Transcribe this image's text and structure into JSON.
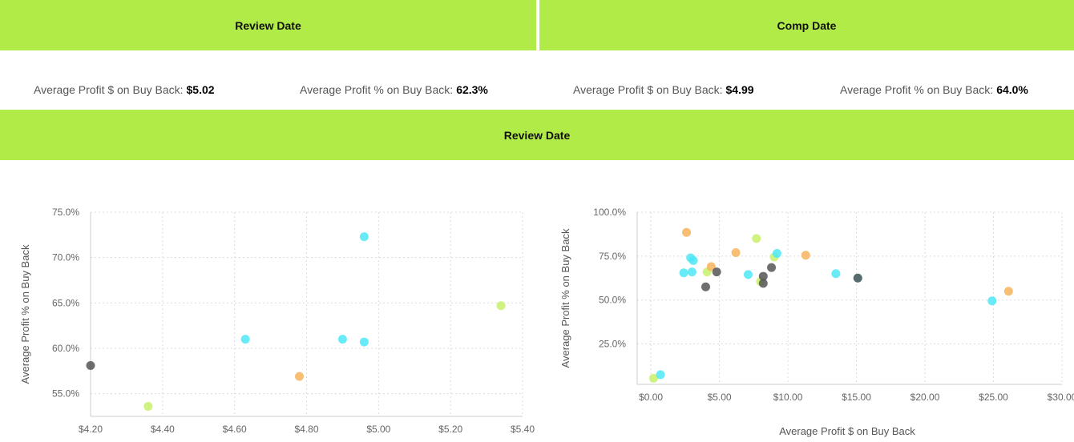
{
  "header": {
    "review_title": "Review Date",
    "comp_title": "Comp Date",
    "chart_section_title": "Review Date"
  },
  "metrics": {
    "review_profit_dollar_label": "Average Profit $ on Buy Back:",
    "review_profit_dollar_value": "$5.02",
    "review_profit_pct_label": "Average Profit % on Buy Back:",
    "review_profit_pct_value": "62.3%",
    "comp_profit_dollar_label": "Average Profit $ on Buy Back:",
    "comp_profit_dollar_value": "$4.99",
    "comp_profit_pct_label": "Average Profit % on Buy Back:",
    "comp_profit_pct_value": "64.0%"
  },
  "colors": {
    "banner": "#b1eb48",
    "cyan": "#4de8f4",
    "orange": "#f7b35a",
    "gray": "#555555",
    "lime": "#c8f06a"
  },
  "chart_data": [
    {
      "type": "scatter",
      "title": "",
      "xlabel": "",
      "ylabel": "Average Profit % on Buy Back",
      "xlim": [
        4.2,
        5.4
      ],
      "ylim": [
        52.5,
        75
      ],
      "x_ticks": [
        "$4.20",
        "$4.40",
        "$4.60",
        "$4.80",
        "$5.00",
        "$5.20",
        "$5.40"
      ],
      "x_tick_values": [
        4.2,
        4.4,
        4.6,
        4.8,
        5.0,
        5.2,
        5.4
      ],
      "y_ticks": [
        "55.0%",
        "60.0%",
        "65.0%",
        "70.0%",
        "75.0%"
      ],
      "y_tick_values": [
        55,
        60,
        65,
        70,
        75
      ],
      "points": [
        {
          "x": 4.2,
          "y": 58.1,
          "color": "gray"
        },
        {
          "x": 4.36,
          "y": 53.6,
          "color": "lime"
        },
        {
          "x": 4.63,
          "y": 61.0,
          "color": "cyan"
        },
        {
          "x": 4.78,
          "y": 56.9,
          "color": "orange"
        },
        {
          "x": 4.9,
          "y": 61.0,
          "color": "cyan"
        },
        {
          "x": 4.96,
          "y": 60.7,
          "color": "cyan"
        },
        {
          "x": 4.96,
          "y": 72.3,
          "color": "cyan"
        },
        {
          "x": 5.34,
          "y": 64.7,
          "color": "lime"
        }
      ]
    },
    {
      "type": "scatter",
      "title": "",
      "xlabel": "Average Profit $ on Buy Back",
      "ylabel": "Average Profit % on Buy Back",
      "xlim": [
        -1,
        30
      ],
      "ylim": [
        2,
        100
      ],
      "x_ticks": [
        "$0.00",
        "$5.00",
        "$10.00",
        "$15.00",
        "$20.00",
        "$25.00",
        "$30.00"
      ],
      "x_tick_values": [
        0,
        5,
        10,
        15,
        20,
        25,
        30
      ],
      "y_ticks": [
        "25.0%",
        "50.0%",
        "75.0%",
        "100.0%"
      ],
      "y_tick_values": [
        25,
        50,
        75,
        100
      ],
      "points": [
        {
          "x": 0.2,
          "y": 5.5,
          "color": "lime"
        },
        {
          "x": 0.7,
          "y": 7.5,
          "color": "cyan"
        },
        {
          "x": 2.4,
          "y": 65.5,
          "color": "cyan"
        },
        {
          "x": 2.6,
          "y": 88.5,
          "color": "orange"
        },
        {
          "x": 2.9,
          "y": 74.0,
          "color": "cyan"
        },
        {
          "x": 3.0,
          "y": 66.0,
          "color": "cyan"
        },
        {
          "x": 3.1,
          "y": 72.5,
          "color": "cyan"
        },
        {
          "x": 4.0,
          "y": 57.5,
          "color": "gray"
        },
        {
          "x": 4.1,
          "y": 66.0,
          "color": "lime"
        },
        {
          "x": 4.4,
          "y": 69.0,
          "color": "orange"
        },
        {
          "x": 4.8,
          "y": 66.0,
          "color": "gray"
        },
        {
          "x": 6.2,
          "y": 77.0,
          "color": "orange"
        },
        {
          "x": 7.1,
          "y": 64.5,
          "color": "cyan"
        },
        {
          "x": 7.7,
          "y": 85.0,
          "color": "lime"
        },
        {
          "x": 8.0,
          "y": 60.5,
          "color": "lime"
        },
        {
          "x": 8.2,
          "y": 59.5,
          "color": "gray"
        },
        {
          "x": 8.2,
          "y": 63.5,
          "color": "gray"
        },
        {
          "x": 8.8,
          "y": 68.5,
          "color": "gray"
        },
        {
          "x": 9.0,
          "y": 74.5,
          "color": "lime"
        },
        {
          "x": 9.2,
          "y": 76.5,
          "color": "cyan"
        },
        {
          "x": 11.3,
          "y": 75.5,
          "color": "orange"
        },
        {
          "x": 13.5,
          "y": 65.0,
          "color": "cyan"
        },
        {
          "x": 15.1,
          "y": 62.5,
          "color": "cyan"
        },
        {
          "x": 15.1,
          "y": 62.5,
          "color": "gray"
        },
        {
          "x": 24.9,
          "y": 49.5,
          "color": "cyan"
        },
        {
          "x": 26.1,
          "y": 55.0,
          "color": "orange"
        }
      ]
    }
  ]
}
